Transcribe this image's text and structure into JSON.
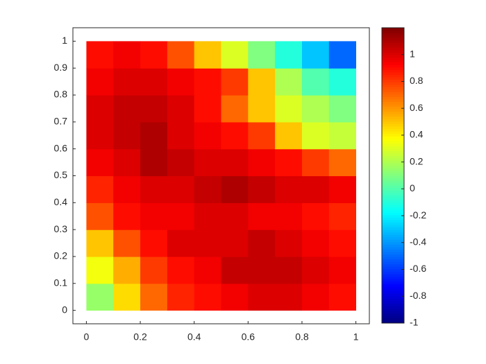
{
  "chart_data": {
    "type": "heatmap",
    "x": [
      0.05,
      0.15,
      0.25,
      0.35,
      0.45,
      0.55,
      0.65,
      0.75,
      0.85,
      0.95
    ],
    "y": [
      0.05,
      0.15,
      0.25,
      0.35,
      0.45,
      0.55,
      0.65,
      0.75,
      0.85,
      0.95
    ],
    "values": [
      [
        0.15,
        0.45,
        0.7,
        0.85,
        0.9,
        0.95,
        1.0,
        1.0,
        0.95,
        0.9
      ],
      [
        0.35,
        0.55,
        0.8,
        0.9,
        0.95,
        1.05,
        1.05,
        1.05,
        1.0,
        0.95
      ],
      [
        0.5,
        0.75,
        0.9,
        1.0,
        1.0,
        1.0,
        1.05,
        1.0,
        0.95,
        0.9
      ],
      [
        0.75,
        0.9,
        0.95,
        0.95,
        1.0,
        1.0,
        0.95,
        0.95,
        0.9,
        0.85
      ],
      [
        0.85,
        0.95,
        1.0,
        1.0,
        1.05,
        1.1,
        1.05,
        1.0,
        1.0,
        0.95
      ],
      [
        0.95,
        1.0,
        1.1,
        1.05,
        1.0,
        1.0,
        0.95,
        0.9,
        0.8,
        0.7
      ],
      [
        1.0,
        1.05,
        1.1,
        1.0,
        0.95,
        0.9,
        0.8,
        0.5,
        0.3,
        0.25
      ],
      [
        1.0,
        1.05,
        1.05,
        1.0,
        0.9,
        0.7,
        0.5,
        0.3,
        0.2,
        0.1
      ],
      [
        0.95,
        1.0,
        1.0,
        0.95,
        0.9,
        0.8,
        0.5,
        0.2,
        0.0,
        -0.1
      ],
      [
        0.9,
        0.95,
        0.9,
        0.75,
        0.5,
        0.3,
        0.1,
        -0.1,
        -0.3,
        -0.5
      ]
    ],
    "xlim": [
      -0.05,
      1.05
    ],
    "ylim": [
      -0.05,
      1.05
    ],
    "xticks": [
      0,
      0.2,
      0.4,
      0.6,
      0.8,
      1
    ],
    "yticks": [
      0,
      0.1,
      0.2,
      0.3,
      0.4,
      0.5,
      0.6,
      0.7,
      0.8,
      0.9,
      1
    ],
    "clim": [
      -1,
      1.2
    ],
    "cticks": [
      -1,
      -0.8,
      -0.6,
      -0.4,
      -0.2,
      0,
      0.2,
      0.4,
      0.6,
      0.8,
      1
    ],
    "colormap": "jet"
  }
}
